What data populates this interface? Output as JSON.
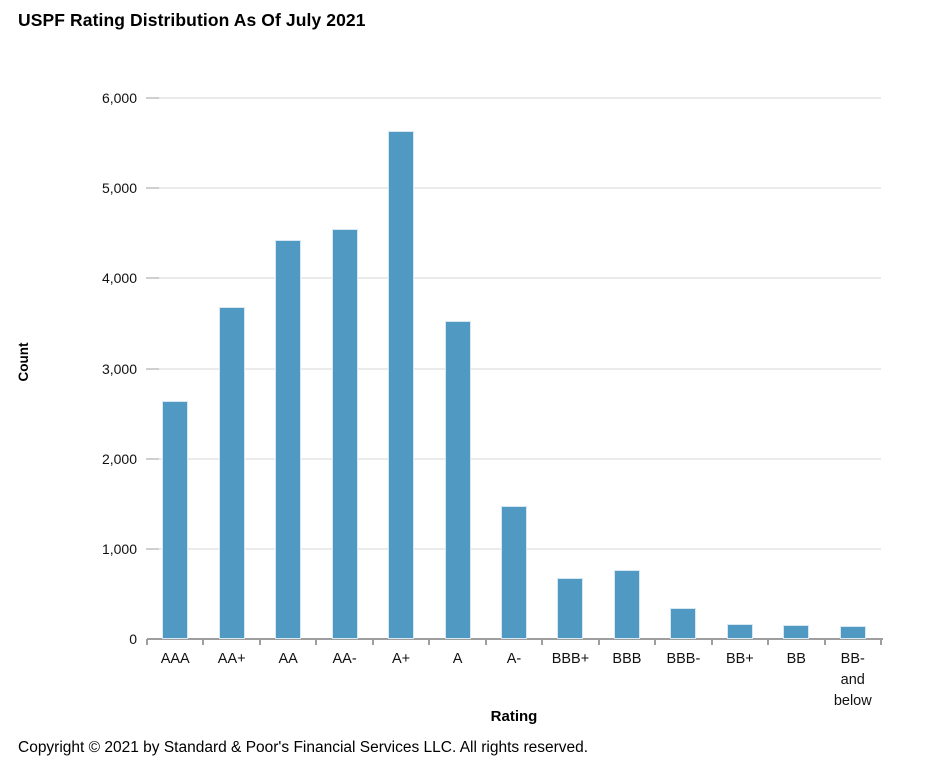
{
  "title": "USPF Rating Distribution As Of July 2021",
  "footer": {
    "copyright": "Copyright © 2021 by Standard & Poor's Financial Services LLC. All rights reserved."
  },
  "chart_data": {
    "type": "bar",
    "title": "USPF Rating Distribution As Of July 2021",
    "xlabel": "Rating",
    "ylabel": "Count",
    "categories": [
      "AAA",
      "AA+",
      "AA",
      "AA-",
      "A+",
      "A",
      "A-",
      "BBB+",
      "BBB",
      "BBB-",
      "BB+",
      "BB",
      "BB- and below"
    ],
    "values": [
      2640,
      3680,
      4430,
      4550,
      5630,
      3530,
      1480,
      680,
      770,
      345,
      165,
      155,
      145
    ],
    "ylim": [
      0,
      6000
    ],
    "ytick_interval": 1000,
    "ytick_labels": [
      "0",
      "1,000",
      "2,000",
      "3,000",
      "4,000",
      "5,000",
      "6,000"
    ],
    "grid": "horizontal",
    "legend": "none",
    "colors": {
      "bar": "#4f99c2",
      "bar_edge": "#d8e8f2",
      "gridline": "#ebebeb",
      "ytick": "#cfcfcf",
      "axis": "#9e9e9e",
      "text": "#000000"
    }
  }
}
